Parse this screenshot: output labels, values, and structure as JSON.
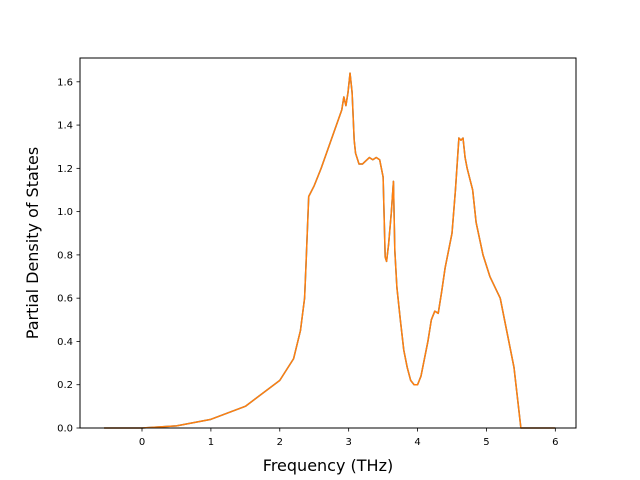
{
  "chart_data": {
    "type": "line",
    "title": "",
    "xlabel": "Frequency (THz)",
    "ylabel": "Partial Density of States",
    "xlim": [
      -0.9,
      6.3
    ],
    "ylim": [
      0.0,
      1.71
    ],
    "grid": false,
    "legend": "none",
    "x_ticks": [
      0,
      1,
      2,
      3,
      4,
      5,
      6
    ],
    "x_tick_labels": [
      "0",
      "1",
      "2",
      "3",
      "4",
      "5",
      "6"
    ],
    "y_ticks": [
      0.0,
      0.2,
      0.4,
      0.6,
      0.8,
      1.0,
      1.2,
      1.4,
      1.6
    ],
    "y_tick_labels": [
      "0.0",
      "0.2",
      "0.4",
      "0.6",
      "0.8",
      "1.0",
      "1.2",
      "1.4",
      "1.6"
    ],
    "series": [
      {
        "name": "",
        "color": "#1f77b4",
        "x": [
          -0.55,
          0.0,
          0.5,
          1.0,
          1.5,
          2.0,
          2.2,
          2.3,
          2.36,
          2.38,
          2.42,
          2.5,
          2.6,
          2.7,
          2.8,
          2.9,
          2.93,
          2.96,
          2.99,
          3.02,
          3.05,
          3.08,
          3.1,
          3.15,
          3.2,
          3.3,
          3.35,
          3.4,
          3.45,
          3.5,
          3.53,
          3.55,
          3.58,
          3.62,
          3.65,
          3.67,
          3.7,
          3.75,
          3.8,
          3.85,
          3.9,
          3.95,
          4.0,
          4.05,
          4.1,
          4.15,
          4.2,
          4.25,
          4.3,
          4.35,
          4.4,
          4.5,
          4.55,
          4.6,
          4.63,
          4.66,
          4.69,
          4.72,
          4.76,
          4.8,
          4.85,
          4.95,
          5.05,
          5.2,
          5.3,
          5.4,
          5.45,
          5.5,
          6.0
        ],
        "y": [
          0.0,
          0.0,
          0.01,
          0.04,
          0.1,
          0.22,
          0.32,
          0.45,
          0.6,
          0.75,
          1.07,
          1.12,
          1.2,
          1.29,
          1.38,
          1.47,
          1.53,
          1.49,
          1.55,
          1.64,
          1.55,
          1.33,
          1.27,
          1.22,
          1.22,
          1.25,
          1.24,
          1.25,
          1.24,
          1.16,
          0.79,
          0.77,
          0.85,
          1.0,
          1.14,
          0.82,
          0.65,
          0.5,
          0.36,
          0.28,
          0.22,
          0.2,
          0.2,
          0.24,
          0.32,
          0.4,
          0.5,
          0.54,
          0.53,
          0.63,
          0.74,
          0.9,
          1.1,
          1.34,
          1.33,
          1.34,
          1.25,
          1.2,
          1.15,
          1.1,
          0.95,
          0.8,
          0.7,
          0.6,
          0.44,
          0.28,
          0.14,
          0.0,
          0.0
        ]
      },
      {
        "name": "",
        "color": "#ff7f0e",
        "x": [
          -0.55,
          0.0,
          0.5,
          1.0,
          1.5,
          2.0,
          2.2,
          2.3,
          2.36,
          2.38,
          2.42,
          2.5,
          2.6,
          2.7,
          2.8,
          2.9,
          2.93,
          2.96,
          2.99,
          3.02,
          3.05,
          3.08,
          3.1,
          3.15,
          3.2,
          3.3,
          3.35,
          3.4,
          3.45,
          3.5,
          3.53,
          3.55,
          3.58,
          3.62,
          3.65,
          3.67,
          3.7,
          3.75,
          3.8,
          3.85,
          3.9,
          3.95,
          4.0,
          4.05,
          4.1,
          4.15,
          4.2,
          4.25,
          4.3,
          4.35,
          4.4,
          4.5,
          4.55,
          4.6,
          4.63,
          4.66,
          4.69,
          4.72,
          4.76,
          4.8,
          4.85,
          4.95,
          5.05,
          5.2,
          5.3,
          5.4,
          5.45,
          5.5,
          6.0
        ],
        "y": [
          0.0,
          0.0,
          0.01,
          0.04,
          0.1,
          0.22,
          0.32,
          0.45,
          0.6,
          0.75,
          1.07,
          1.12,
          1.2,
          1.29,
          1.38,
          1.47,
          1.53,
          1.49,
          1.55,
          1.64,
          1.55,
          1.33,
          1.27,
          1.22,
          1.22,
          1.25,
          1.24,
          1.25,
          1.24,
          1.16,
          0.79,
          0.77,
          0.85,
          1.0,
          1.14,
          0.82,
          0.65,
          0.5,
          0.36,
          0.28,
          0.22,
          0.2,
          0.2,
          0.24,
          0.32,
          0.4,
          0.5,
          0.54,
          0.53,
          0.63,
          0.74,
          0.9,
          1.1,
          1.34,
          1.33,
          1.34,
          1.25,
          1.2,
          1.15,
          1.1,
          0.95,
          0.8,
          0.7,
          0.6,
          0.44,
          0.28,
          0.14,
          0.0,
          0.0
        ]
      }
    ]
  }
}
